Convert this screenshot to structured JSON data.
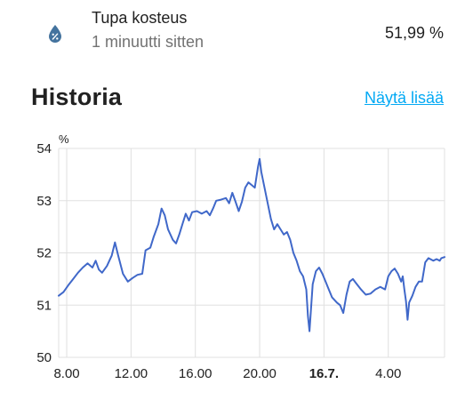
{
  "entity": {
    "name": "Tupa kosteus",
    "last_changed": "1 minuutti sitten",
    "state": "51,99 %",
    "icon": "water-percent-icon",
    "icon_color": "#44739e"
  },
  "history": {
    "title": "Historia",
    "more_link": "Näytä lisää"
  },
  "colors": {
    "line": "#4068c9",
    "grid": "#e0e0e0",
    "link": "#03a9f4"
  },
  "chart_data": {
    "type": "line",
    "title": "",
    "xlabel": "",
    "ylabel": "%",
    "ylim": [
      50,
      54
    ],
    "yticks": [
      "54",
      "53",
      "52",
      "51",
      "50"
    ],
    "xticks": [
      {
        "label": "8.00",
        "hours": 0,
        "bold": false
      },
      {
        "label": "12.00",
        "hours": 4,
        "bold": false
      },
      {
        "label": "16.00",
        "hours": 8,
        "bold": false
      },
      {
        "label": "20.00",
        "hours": 12,
        "bold": false
      },
      {
        "label": "16.7.",
        "hours": 16,
        "bold": true
      },
      {
        "label": "4.00",
        "hours": 20,
        "bold": false
      }
    ],
    "xlim_hours": [
      -0.5,
      23.5
    ],
    "grid": true,
    "series": [
      {
        "values": [
          [
            -0.5,
            51.18
          ],
          [
            -0.2,
            51.25
          ],
          [
            0.1,
            51.38
          ],
          [
            0.4,
            51.5
          ],
          [
            0.7,
            51.62
          ],
          [
            1.0,
            51.72
          ],
          [
            1.3,
            51.8
          ],
          [
            1.6,
            51.72
          ],
          [
            1.8,
            51.85
          ],
          [
            2.0,
            51.68
          ],
          [
            2.2,
            51.62
          ],
          [
            2.5,
            51.75
          ],
          [
            2.8,
            51.95
          ],
          [
            3.0,
            52.2
          ],
          [
            3.2,
            51.95
          ],
          [
            3.5,
            51.6
          ],
          [
            3.8,
            51.45
          ],
          [
            4.1,
            51.52
          ],
          [
            4.4,
            51.58
          ],
          [
            4.7,
            51.6
          ],
          [
            4.9,
            52.05
          ],
          [
            5.2,
            52.1
          ],
          [
            5.4,
            52.3
          ],
          [
            5.7,
            52.55
          ],
          [
            5.9,
            52.85
          ],
          [
            6.1,
            52.72
          ],
          [
            6.3,
            52.45
          ],
          [
            6.6,
            52.25
          ],
          [
            6.8,
            52.18
          ],
          [
            7.0,
            52.35
          ],
          [
            7.2,
            52.55
          ],
          [
            7.4,
            52.75
          ],
          [
            7.6,
            52.62
          ],
          [
            7.8,
            52.78
          ],
          [
            8.1,
            52.8
          ],
          [
            8.4,
            52.75
          ],
          [
            8.7,
            52.8
          ],
          [
            8.9,
            52.72
          ],
          [
            9.1,
            52.85
          ],
          [
            9.3,
            53.0
          ],
          [
            9.6,
            53.02
          ],
          [
            9.9,
            53.05
          ],
          [
            10.1,
            52.95
          ],
          [
            10.3,
            53.15
          ],
          [
            10.5,
            52.98
          ],
          [
            10.7,
            52.8
          ],
          [
            10.9,
            52.98
          ],
          [
            11.1,
            53.25
          ],
          [
            11.3,
            53.35
          ],
          [
            11.5,
            53.3
          ],
          [
            11.7,
            53.25
          ],
          [
            11.8,
            53.45
          ],
          [
            11.9,
            53.65
          ],
          [
            12.0,
            53.8
          ],
          [
            12.1,
            53.55
          ],
          [
            12.3,
            53.25
          ],
          [
            12.5,
            52.95
          ],
          [
            12.7,
            52.65
          ],
          [
            12.9,
            52.45
          ],
          [
            13.1,
            52.55
          ],
          [
            13.3,
            52.45
          ],
          [
            13.5,
            52.35
          ],
          [
            13.7,
            52.4
          ],
          [
            13.9,
            52.25
          ],
          [
            14.1,
            52.0
          ],
          [
            14.3,
            51.85
          ],
          [
            14.5,
            51.65
          ],
          [
            14.7,
            51.55
          ],
          [
            14.9,
            51.3
          ],
          [
            15.0,
            50.8
          ],
          [
            15.1,
            50.5
          ],
          [
            15.3,
            51.4
          ],
          [
            15.5,
            51.65
          ],
          [
            15.7,
            51.72
          ],
          [
            15.9,
            51.6
          ],
          [
            16.1,
            51.45
          ],
          [
            16.3,
            51.3
          ],
          [
            16.5,
            51.15
          ],
          [
            16.8,
            51.05
          ],
          [
            17.0,
            51.0
          ],
          [
            17.2,
            50.85
          ],
          [
            17.4,
            51.2
          ],
          [
            17.6,
            51.45
          ],
          [
            17.8,
            51.5
          ],
          [
            18.0,
            51.42
          ],
          [
            18.3,
            51.3
          ],
          [
            18.6,
            51.2
          ],
          [
            18.9,
            51.22
          ],
          [
            19.2,
            51.3
          ],
          [
            19.5,
            51.35
          ],
          [
            19.8,
            51.3
          ],
          [
            20.0,
            51.55
          ],
          [
            20.2,
            51.65
          ],
          [
            20.4,
            51.7
          ],
          [
            20.6,
            51.6
          ],
          [
            20.8,
            51.45
          ],
          [
            20.9,
            51.55
          ],
          [
            21.0,
            51.3
          ],
          [
            21.1,
            51.08
          ],
          [
            21.2,
            50.72
          ],
          [
            21.3,
            51.05
          ],
          [
            21.5,
            51.18
          ],
          [
            21.7,
            51.35
          ],
          [
            21.9,
            51.45
          ],
          [
            22.1,
            51.45
          ],
          [
            22.3,
            51.82
          ],
          [
            22.5,
            51.9
          ],
          [
            22.8,
            51.85
          ],
          [
            23.0,
            51.88
          ],
          [
            23.2,
            51.85
          ],
          [
            23.3,
            51.9
          ],
          [
            23.5,
            51.92
          ]
        ]
      }
    ]
  }
}
